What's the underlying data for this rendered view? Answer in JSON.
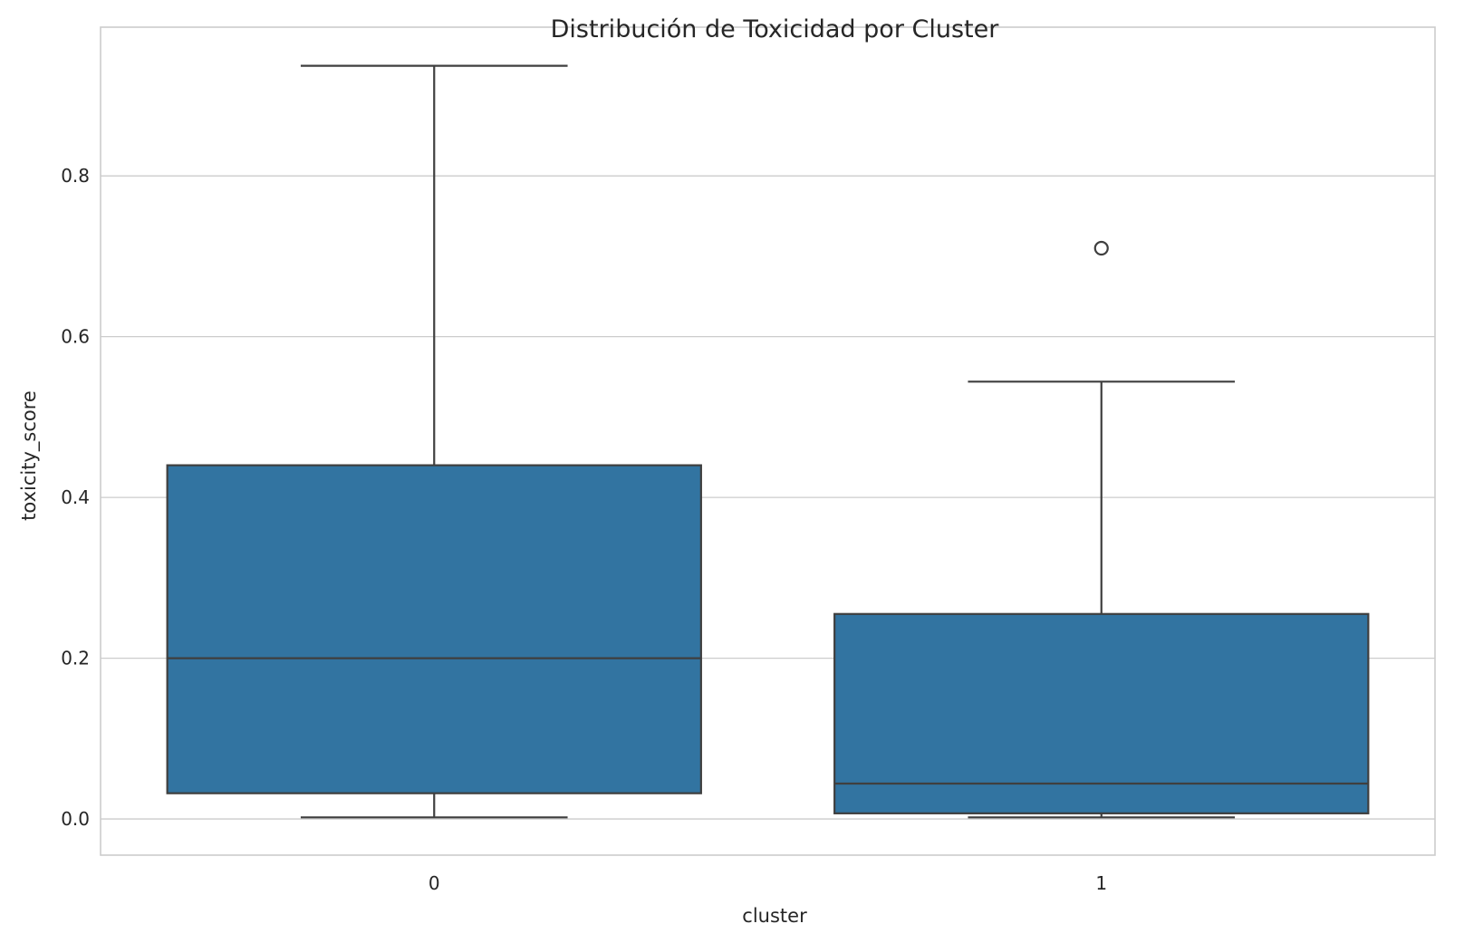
{
  "chart_data": {
    "type": "box",
    "title": "Distribución de Toxicidad por Cluster",
    "xlabel": "cluster",
    "ylabel": "toxicity_score",
    "categories": [
      "0",
      "1"
    ],
    "ylim": [
      -0.045,
      0.985
    ],
    "yticks": [
      0.0,
      0.2,
      0.4,
      0.6,
      0.8
    ],
    "ytick_labels": [
      "0.0",
      "0.2",
      "0.4",
      "0.6",
      "0.8"
    ],
    "grid": "horizontal",
    "color": "#3274a1",
    "boxes": [
      {
        "category": "0",
        "whisker_low": 0.002,
        "q1": 0.032,
        "median": 0.2,
        "q3": 0.44,
        "whisker_high": 0.937,
        "outliers": []
      },
      {
        "category": "1",
        "whisker_low": 0.002,
        "q1": 0.007,
        "median": 0.044,
        "q3": 0.255,
        "whisker_high": 0.544,
        "outliers": [
          0.71
        ]
      }
    ]
  }
}
